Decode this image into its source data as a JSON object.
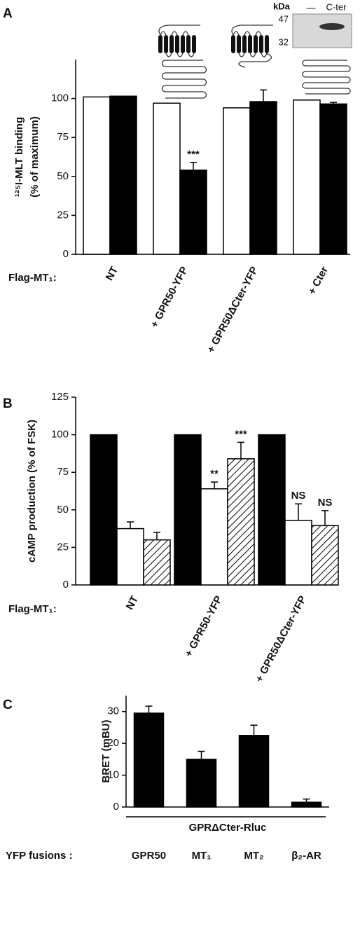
{
  "chart_data": [
    {
      "type": "bar",
      "panel_label": "A",
      "y_label": [
        "¹²⁵I-MLT binding",
        "(% of maximum)"
      ],
      "row_label": "Flag-MT₁:",
      "categories": [
        "NT",
        "+ GPR50-YFP",
        "+ GPR50ΔCter-YFP",
        "+ Cter"
      ],
      "series": [
        {
          "color": "#ffffff",
          "values": [
            101,
            97,
            94,
            99
          ]
        },
        {
          "color": "#000000",
          "values": [
            101.5,
            54,
            98,
            96.5
          ],
          "errors": [
            null,
            5,
            7.5,
            1
          ],
          "annotations": [
            null,
            "***",
            null,
            null
          ]
        }
      ],
      "ylim": [
        0,
        125
      ],
      "yticks": [
        0,
        25,
        50,
        75,
        100
      ],
      "inset": {
        "unit": "kDa",
        "lanes": [
          "—",
          "C-ter"
        ],
        "markers": [
          "47",
          "32"
        ]
      }
    },
    {
      "type": "bar",
      "panel_label": "B",
      "y_label": [
        "cAMP production (% of FSK)"
      ],
      "row_label": "Flag-MT₁:",
      "categories": [
        "NT",
        "+ GPR50-YFP",
        "+ GPR50ΔCter-YFP"
      ],
      "series": [
        {
          "color": "#000000",
          "values": [
            100,
            100,
            100
          ]
        },
        {
          "color": "#ffffff",
          "values": [
            37.5,
            64,
            43
          ],
          "errors": [
            4.5,
            4.5,
            11
          ],
          "annotations": [
            null,
            "**",
            "NS"
          ]
        },
        {
          "color": "#000000",
          "pattern": "hatch",
          "values": [
            30,
            84,
            39.5
          ],
          "errors": [
            5,
            11,
            10
          ],
          "annotations": [
            null,
            "***",
            "NS"
          ]
        }
      ],
      "ylim": [
        0,
        125
      ],
      "yticks": [
        0,
        25,
        50,
        75,
        100,
        125
      ]
    },
    {
      "type": "bar",
      "panel_label": "C",
      "y_label": [
        "BRET (mBU)"
      ],
      "row_label": "YFP fusions :",
      "group_label": "GPRΔCter-Rluc",
      "categories": [
        "GPR50",
        "MT₁",
        "MT₂",
        "β₂-AR"
      ],
      "series": [
        {
          "color": "#000000",
          "values": [
            29.5,
            15,
            22.5,
            1.5
          ],
          "errors": [
            2.2,
            2.5,
            3.2,
            1
          ]
        }
      ],
      "ylim": [
        0,
        35
      ],
      "yticks": [
        0,
        10,
        20,
        30
      ]
    }
  ]
}
